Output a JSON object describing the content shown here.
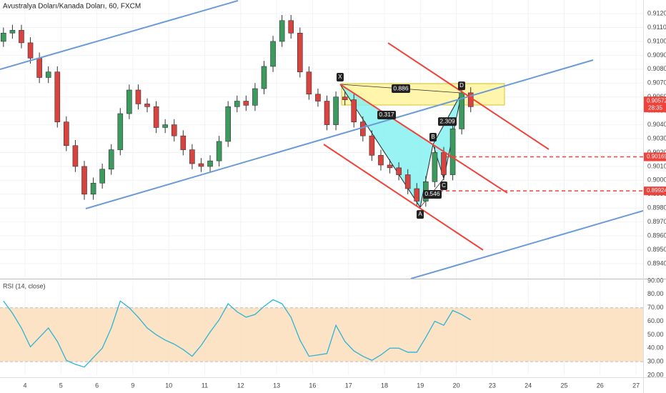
{
  "chart_data": [
    {
      "type": "candlestick",
      "title": "Avustralya Doları/Kanada Doları, 60, FXCM",
      "x": [
        -0.6,
        -0.35,
        -0.1,
        0.15,
        0.4,
        0.65,
        0.9,
        1.15,
        1.4,
        1.65,
        1.9,
        2.15,
        2.4,
        2.65,
        2.9,
        3.15,
        3.4,
        3.65,
        3.9,
        4.15,
        4.4,
        4.65,
        4.9,
        5.15,
        5.4,
        5.65,
        5.9,
        6.15,
        6.4,
        6.65,
        6.9,
        7.15,
        7.4,
        7.65,
        7.9,
        8.15,
        8.4,
        8.65,
        8.9,
        9.15,
        9.4,
        9.65,
        9.9,
        10.15,
        10.4,
        10.65,
        10.9,
        11.15,
        11.4,
        11.65,
        11.9,
        12.15,
        12.4
      ],
      "open": [
        0.91,
        0.9106,
        0.9108,
        0.9099,
        0.9088,
        0.9074,
        0.9078,
        0.9042,
        0.9025,
        0.901,
        0.899,
        0.8998,
        0.9008,
        0.9022,
        0.9048,
        0.9065,
        0.9055,
        0.9053,
        0.9038,
        0.904,
        0.9032,
        0.9022,
        0.9012,
        0.901,
        0.9014,
        0.9028,
        0.9053,
        0.9057,
        0.9054,
        0.9066,
        0.9082,
        0.91,
        0.9115,
        0.9106,
        0.9078,
        0.9062,
        0.9057,
        0.904,
        0.906,
        0.9058,
        0.9042,
        0.9032,
        0.9018,
        0.9011,
        0.9009,
        0.9004,
        0.8994,
        0.8985,
        0.8999,
        0.902,
        0.9004,
        0.9037,
        0.9063
      ],
      "high": [
        0.911,
        0.9112,
        0.9112,
        0.9103,
        0.9092,
        0.9082,
        0.9082,
        0.9046,
        0.9029,
        0.9014,
        0.9002,
        0.9012,
        0.9026,
        0.9052,
        0.9069,
        0.9069,
        0.9059,
        0.9057,
        0.9044,
        0.9044,
        0.9036,
        0.9026,
        0.9016,
        0.9018,
        0.9032,
        0.9057,
        0.9061,
        0.9061,
        0.907,
        0.9086,
        0.9104,
        0.9119,
        0.9119,
        0.911,
        0.9082,
        0.9066,
        0.9061,
        0.9064,
        0.9064,
        0.9062,
        0.9046,
        0.9036,
        0.9022,
        0.9015,
        0.9013,
        0.9008,
        0.8998,
        0.9003,
        0.9024,
        0.9024,
        0.9041,
        0.9067,
        0.9067
      ],
      "low": [
        0.9096,
        0.9102,
        0.9095,
        0.9084,
        0.907,
        0.907,
        0.9038,
        0.9021,
        0.9006,
        0.8986,
        0.8986,
        0.8994,
        0.9004,
        0.9018,
        0.9044,
        0.9051,
        0.9049,
        0.9034,
        0.9034,
        0.9028,
        0.9018,
        0.9008,
        0.9006,
        0.9006,
        0.901,
        0.9024,
        0.9049,
        0.905,
        0.905,
        0.9062,
        0.9078,
        0.9096,
        0.9102,
        0.9074,
        0.9058,
        0.9053,
        0.9036,
        0.9036,
        0.9054,
        0.9038,
        0.9028,
        0.9014,
        0.9007,
        0.9005,
        0.9,
        0.899,
        0.8981,
        0.8981,
        0.8995,
        0.9,
        0.9,
        0.9033,
        0.9049
      ],
      "close": [
        0.9106,
        0.9108,
        0.9099,
        0.9088,
        0.9074,
        0.9078,
        0.9042,
        0.9025,
        0.901,
        0.899,
        0.8998,
        0.9008,
        0.9022,
        0.9048,
        0.9065,
        0.9055,
        0.9053,
        0.9038,
        0.904,
        0.9032,
        0.9022,
        0.9012,
        0.901,
        0.9014,
        0.9028,
        0.9053,
        0.9057,
        0.9054,
        0.9066,
        0.9082,
        0.91,
        0.9115,
        0.9106,
        0.9078,
        0.9062,
        0.9057,
        0.904,
        0.906,
        0.9058,
        0.9042,
        0.9032,
        0.9018,
        0.9011,
        0.9009,
        0.9004,
        0.8994,
        0.8985,
        0.8999,
        0.902,
        0.9004,
        0.9037,
        0.9063,
        0.9053
      ],
      "up_color": "#3c9a5f",
      "down_color": "#d9433f",
      "xlim": [
        -0.696,
        17.197
      ],
      "ylim": [
        0.89292,
        0.91298
      ],
      "yticks": [
        {
          "value": 0.912,
          "label": "0.91200"
        },
        {
          "value": 0.911,
          "label": "0.91100"
        },
        {
          "value": 0.91,
          "label": "0.91000"
        },
        {
          "value": 0.909,
          "label": "0.90900"
        },
        {
          "value": 0.908,
          "label": "0.90800"
        },
        {
          "value": 0.907,
          "label": "0.90700"
        },
        {
          "value": 0.906,
          "label": "0.90600"
        },
        {
          "value": 0.905,
          "label": "0.90500"
        },
        {
          "value": 0.904,
          "label": "0.90400"
        },
        {
          "value": 0.903,
          "label": "0.90300"
        },
        {
          "value": 0.902,
          "label": "0.90200"
        },
        {
          "value": 0.901,
          "label": "0.90100"
        },
        {
          "value": 0.9,
          "label": "0.90000"
        },
        {
          "value": 0.899,
          "label": "0.89900"
        },
        {
          "value": 0.898,
          "label": "0.89800"
        },
        {
          "value": 0.897,
          "label": "0.89700"
        },
        {
          "value": 0.896,
          "label": "0.89600"
        },
        {
          "value": 0.895,
          "label": "0.89500"
        },
        {
          "value": 0.894,
          "label": "0.89400"
        }
      ],
      "xticks": [
        {
          "value": 0,
          "label": "4"
        },
        {
          "value": 1,
          "label": "5"
        },
        {
          "value": 2,
          "label": "6"
        },
        {
          "value": 3,
          "label": "9"
        },
        {
          "value": 4,
          "label": "10"
        },
        {
          "value": 5,
          "label": "11"
        },
        {
          "value": 6,
          "label": "12"
        },
        {
          "value": 7,
          "label": "13"
        },
        {
          "value": 8,
          "label": "16"
        },
        {
          "value": 9,
          "label": "17"
        },
        {
          "value": 10,
          "label": "18"
        },
        {
          "value": 11,
          "label": "19"
        },
        {
          "value": 12,
          "label": "20"
        },
        {
          "value": 13,
          "label": "23"
        },
        {
          "value": 14,
          "label": "24"
        },
        {
          "value": 15,
          "label": "25"
        },
        {
          "value": 16,
          "label": "26"
        },
        {
          "value": 17,
          "label": "27"
        }
      ],
      "trendlines": [
        {
          "color": "#6a9bd8",
          "points": [
            [
              -0.696,
              0.90799
            ],
            [
              5.924,
              0.91293
            ]
          ]
        },
        {
          "color": "#6a9bd8",
          "points": [
            [
              1.69,
              0.89796
            ],
            [
              15.805,
              0.90866
            ]
          ]
        },
        {
          "color": "#6a9bd8",
          "points": [
            [
              10.736,
              0.89292
            ],
            [
              17.197,
              0.89781
            ]
          ]
        },
        {
          "color": "#f0423a",
          "points": [
            [
              10.099,
              0.90989
            ],
            [
              14.573,
              0.90223
            ]
          ]
        },
        {
          "color": "#f0423a",
          "points": [
            [
              8.767,
              0.90691
            ],
            [
              13.419,
              0.89909
            ]
          ]
        },
        {
          "color": "#f0423a",
          "points": [
            [
              8.31,
              0.90259
            ],
            [
              12.744,
              0.89498
            ]
          ]
        }
      ],
      "levels": [
        {
          "value": 0.90169,
          "from": 11.73,
          "color": "#f0423a"
        },
        {
          "value": 0.89924,
          "from": 11.173,
          "color": "#f0423a"
        }
      ],
      "zone": {
        "x": [
          8.807,
          13.34
        ],
        "y": [
          0.90542,
          0.90696
        ],
        "color": "#fff59d"
      },
      "pattern": {
        "color": "#7ff0f0",
        "points": [
          {
            "label": "X",
            "x": 8.767,
            "y": 0.90691
          },
          {
            "label": "A",
            "x": 10.994,
            "y": 0.89806
          },
          {
            "label": "B",
            "x": 11.352,
            "y": 0.90259
          },
          {
            "label": "C",
            "x": 11.65,
            "y": 0.90012
          },
          {
            "label": "D",
            "x": 12.147,
            "y": 0.90629
          }
        ],
        "ratios": [
          {
            "value": 0.886,
            "x": 10.457,
            "y": 0.9066
          },
          {
            "value": 0.317,
            "x": 10.06,
            "y": 0.9047
          },
          {
            "value": 2.309,
            "x": 11.75,
            "y": 0.90423
          },
          {
            "value": 0.546,
            "x": 11.332,
            "y": 0.89899
          }
        ]
      },
      "last_price": 0.90572,
      "last_color": "#f0423a",
      "countdown": "28:35"
    },
    {
      "type": "line",
      "title": "RSI (14, close)",
      "color": "#2bb3d6",
      "values": [
        75,
        66,
        55,
        41,
        48,
        55,
        45,
        31,
        28,
        26,
        33,
        40,
        55,
        75,
        70,
        63,
        55,
        50,
        46,
        43,
        39,
        34,
        42,
        52,
        61,
        73,
        67,
        63,
        65,
        71,
        76,
        73,
        63,
        46,
        34,
        35,
        36,
        57,
        45,
        38,
        34,
        31,
        35,
        40,
        40,
        37,
        37,
        48,
        60,
        57,
        68,
        65,
        61
      ],
      "ylim": [
        20,
        90
      ],
      "yticks": [
        {
          "value": 90,
          "label": "90.00"
        },
        {
          "value": 80,
          "label": "80.00"
        },
        {
          "value": 70,
          "label": "70.00"
        },
        {
          "value": 60,
          "label": "60.00"
        },
        {
          "value": 50,
          "label": "50.00"
        },
        {
          "value": 40,
          "label": "40.00"
        },
        {
          "value": 30,
          "label": "30.00"
        },
        {
          "value": 20,
          "label": "20.00"
        }
      ],
      "band": [
        30,
        70
      ],
      "band_color": "#fbdcb6"
    }
  ]
}
